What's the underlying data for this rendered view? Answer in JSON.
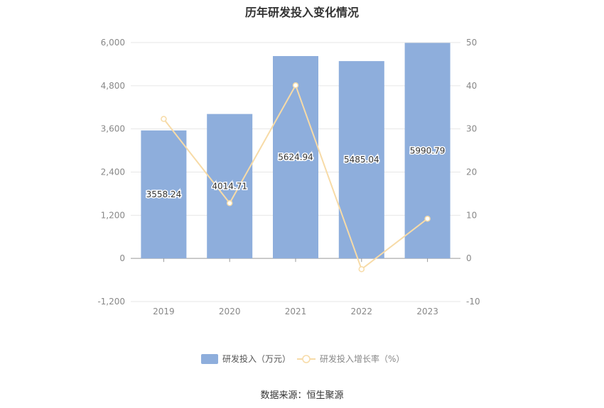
{
  "chart_data": {
    "type": "bar",
    "title": "历年研发投入变化情况",
    "categories": [
      "2019",
      "2020",
      "2021",
      "2022",
      "2023"
    ],
    "series": [
      {
        "name": "研发投入（万元）",
        "type": "bar",
        "axis": "left",
        "values": [
          3558.24,
          4014.71,
          5624.94,
          5485.04,
          5990.79
        ],
        "labels": [
          "3558.24",
          "4014.71",
          "5624.94",
          "5485.04",
          "5990.79"
        ],
        "color": "#8eaedc"
      },
      {
        "name": "研发投入增长率（%）",
        "type": "line",
        "axis": "right",
        "values": [
          32.3,
          12.8,
          40.1,
          -2.5,
          9.2
        ],
        "color": "#f7dba7"
      }
    ],
    "y_left": {
      "min": -1200,
      "max": 6000,
      "ticks": [
        -1200,
        0,
        1200,
        2400,
        3600,
        4800,
        6000
      ],
      "tick_labels": [
        "-1,200",
        "0",
        "1,200",
        "2,400",
        "3,600",
        "4,800",
        "6,000"
      ]
    },
    "y_right": {
      "min": -10,
      "max": 50,
      "ticks": [
        -10,
        0,
        10,
        20,
        30,
        40,
        50
      ],
      "tick_labels": [
        "-10",
        "0",
        "10",
        "20",
        "30",
        "40",
        "50"
      ]
    },
    "grid": true,
    "legend": "bottom-center"
  },
  "footer": {
    "source": "数据来源：恒生聚源"
  }
}
